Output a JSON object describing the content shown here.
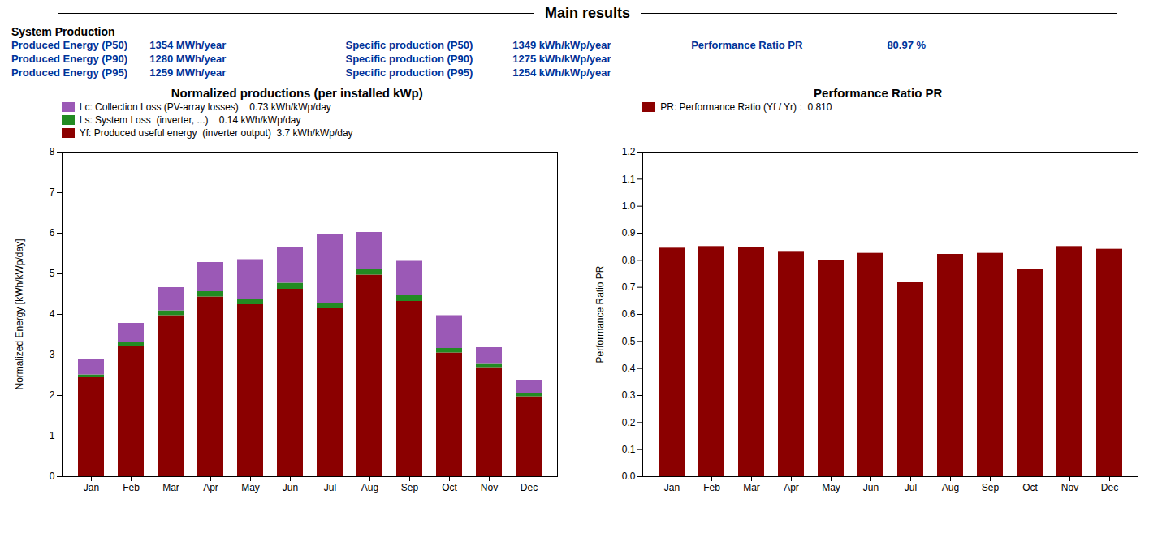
{
  "title": "Main results",
  "subtitle": "System Production",
  "color": "#003399",
  "annotations": [
    [
      "Produced Energy (P50)",
      "1354 MWh/year",
      "Specific production (P50)",
      "1349 kWh/kWp/year",
      "Performance Ratio PR",
      "80.97 %"
    ],
    [
      "Produced Energy (P90)",
      "1280 MWh/year",
      "Specific production (P90)",
      "1275 kWh/kWp/year"
    ],
    [
      "Produced Energy (P95)",
      "1259 MWh/year",
      "Specific production (P95)",
      "1254 kWh/kWp/year"
    ]
  ],
  "chart_data": [
    {
      "type": "bar",
      "stacked": true,
      "title": "Normalized productions (per installed kWp)",
      "categories": [
        "Jan",
        "Feb",
        "Mar",
        "Apr",
        "May",
        "Jun",
        "Jul",
        "Aug",
        "Sep",
        "Oct",
        "Nov",
        "Dec"
      ],
      "series": [
        {
          "name": "Yf: Produced useful energy  (inverter output)  3.7 kWh/kWp/day",
          "color": "#8B0000",
          "values": [
            2.44,
            3.22,
            3.97,
            4.43,
            4.24,
            4.62,
            4.14,
            4.97,
            4.32,
            3.05,
            2.69,
            1.97
          ]
        },
        {
          "name": "Ls: System Loss  (inverter, ...)    0.14 kWh/kWp/day",
          "color": "#228B22",
          "values": [
            0.07,
            0.09,
            0.12,
            0.13,
            0.14,
            0.15,
            0.14,
            0.14,
            0.14,
            0.11,
            0.08,
            0.07
          ]
        },
        {
          "name": "Lc: Collection Loss (PV-array losses)    0.73 kWh/kWp/day",
          "color": "#9B59B6",
          "values": [
            0.38,
            0.47,
            0.57,
            0.72,
            0.97,
            0.89,
            1.69,
            0.91,
            0.85,
            0.81,
            0.41,
            0.34
          ]
        }
      ],
      "ylabel": "Normalized Energy [kWh/kWp/day]",
      "ylim": [
        0,
        8
      ],
      "yticks": [
        0,
        1,
        2,
        3,
        4,
        5,
        6,
        7,
        8
      ],
      "legend": "upper left"
    },
    {
      "type": "bar",
      "title": "Performance Ratio PR",
      "categories": [
        "Jan",
        "Feb",
        "Mar",
        "Apr",
        "May",
        "Jun",
        "Jul",
        "Aug",
        "Sep",
        "Oct",
        "Nov",
        "Dec"
      ],
      "series": [
        {
          "name": "PR: Performance Ratio (Yf / Yr) :  0.810",
          "color": "#8B0000",
          "values": [
            0.845,
            0.851,
            0.846,
            0.83,
            0.8,
            0.826,
            0.718,
            0.822,
            0.826,
            0.765,
            0.851,
            0.841
          ]
        }
      ],
      "ylabel": "Performance Ratio PR",
      "ylim": [
        0.0,
        1.2
      ],
      "yticks": [
        {
          "value": 0,
          "label": "0.0"
        },
        0.1,
        0.2,
        0.3,
        0.4,
        0.5,
        0.6,
        0.7,
        0.8,
        0.9,
        {
          "value": 1,
          "label": "1.0"
        },
        1.1,
        1.2
      ],
      "legend": "upper left"
    }
  ]
}
